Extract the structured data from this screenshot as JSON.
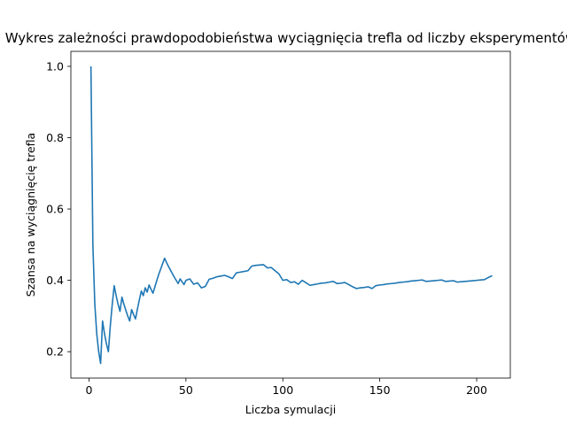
{
  "chart_data": {
    "type": "line",
    "title": "Wykres zależności prawdopodobieństwa wyciągnięcia trefla od liczby eksperymentów",
    "xlabel": "Liczba symulacji",
    "ylabel": "Szansa na wyciągnięcię trefla",
    "xlim": [
      -9.35,
      217.35
    ],
    "ylim": [
      0.126,
      1.042
    ],
    "xticks": [
      0,
      50,
      100,
      150,
      200
    ],
    "yticks": [
      0.2,
      0.4,
      0.6,
      0.8,
      1.0
    ],
    "xtick_labels": [
      "0",
      "50",
      "100",
      "150",
      "200"
    ],
    "ytick_labels": [
      "0.2",
      "0.4",
      "0.6",
      "0.8",
      "1.0"
    ],
    "grid": false,
    "line_color": "#1f77b4",
    "series": [
      {
        "x": [
          1,
          2,
          3,
          4,
          5,
          6,
          7,
          8,
          9,
          10,
          11,
          12,
          13,
          14,
          15,
          16,
          17,
          18,
          19,
          20,
          21,
          22,
          23,
          24,
          25,
          26,
          27,
          28,
          29,
          30,
          31,
          32,
          33,
          34,
          35,
          36,
          37,
          38,
          39,
          40,
          41,
          42,
          43,
          44,
          45,
          46,
          47,
          48,
          49,
          50,
          52,
          54,
          56,
          58,
          60,
          62,
          64,
          66,
          68,
          70,
          72,
          74,
          76,
          78,
          80,
          82,
          84,
          86,
          88,
          90,
          92,
          94,
          96,
          98,
          100,
          102,
          104,
          106,
          108,
          110,
          112,
          114,
          116,
          118,
          120,
          122,
          124,
          126,
          128,
          130,
          132,
          134,
          136,
          138,
          140,
          142,
          144,
          146,
          148,
          150,
          152,
          154,
          156,
          158,
          160,
          162,
          164,
          166,
          168,
          170,
          172,
          174,
          176,
          178,
          180,
          182,
          184,
          186,
          188,
          190,
          192,
          194,
          196,
          198,
          200,
          202,
          204,
          206,
          208
        ],
        "y": [
          1.0,
          0.5,
          0.333,
          0.25,
          0.2,
          0.167,
          0.286,
          0.25,
          0.222,
          0.2,
          0.273,
          0.333,
          0.385,
          0.357,
          0.333,
          0.313,
          0.353,
          0.333,
          0.316,
          0.3,
          0.286,
          0.318,
          0.304,
          0.292,
          0.32,
          0.346,
          0.37,
          0.357,
          0.379,
          0.367,
          0.387,
          0.375,
          0.364,
          0.382,
          0.4,
          0.417,
          0.432,
          0.447,
          0.462,
          0.45,
          0.439,
          0.429,
          0.419,
          0.409,
          0.4,
          0.391,
          0.404,
          0.396,
          0.388,
          0.4,
          0.404,
          0.389,
          0.393,
          0.379,
          0.383,
          0.403,
          0.406,
          0.41,
          0.412,
          0.414,
          0.41,
          0.405,
          0.421,
          0.423,
          0.425,
          0.427,
          0.44,
          0.442,
          0.443,
          0.444,
          0.435,
          0.436,
          0.427,
          0.418,
          0.4,
          0.402,
          0.394,
          0.396,
          0.389,
          0.4,
          0.393,
          0.386,
          0.388,
          0.39,
          0.392,
          0.393,
          0.395,
          0.397,
          0.391,
          0.392,
          0.394,
          0.388,
          0.382,
          0.377,
          0.379,
          0.38,
          0.382,
          0.377,
          0.385,
          0.387,
          0.388,
          0.39,
          0.391,
          0.392,
          0.394,
          0.395,
          0.396,
          0.398,
          0.399,
          0.4,
          0.401,
          0.397,
          0.398,
          0.399,
          0.4,
          0.401,
          0.397,
          0.398,
          0.399,
          0.395,
          0.396,
          0.397,
          0.398,
          0.399,
          0.4,
          0.401,
          0.402,
          0.408,
          0.413
        ]
      }
    ]
  }
}
